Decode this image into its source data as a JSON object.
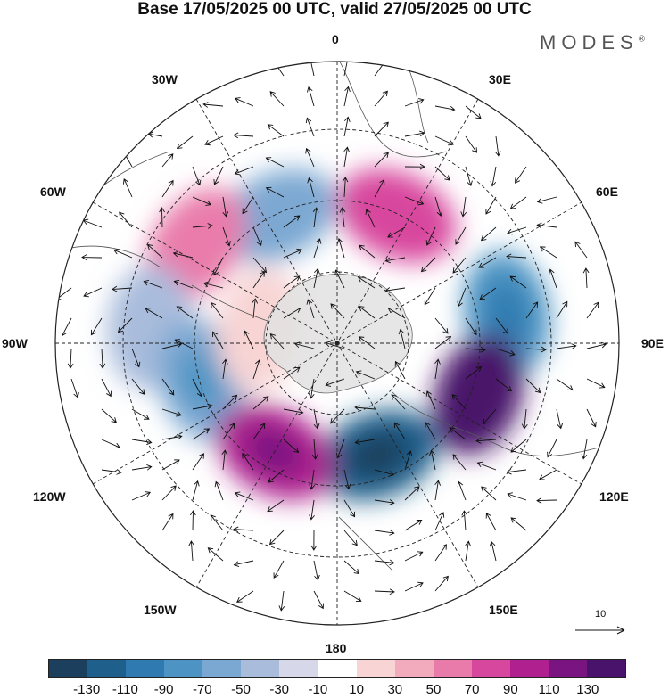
{
  "title": "Base 17/05/2025 00 UTC, valid 27/05/2025 00 UTC",
  "brand": "MODES",
  "brand_mark": "®",
  "labels": {
    "top": "0",
    "top_left": "30W",
    "top_right": "30E",
    "left_upper": "60W",
    "right_upper": "60E",
    "left": "90W",
    "right": "90E",
    "left_lower": "120W",
    "right_lower": "120E",
    "bottom_left": "150W",
    "bottom_right": "150E",
    "bottom": "180"
  },
  "reference_vector": "10",
  "colorbar": {
    "ticks": [
      "-130",
      "-110",
      "-90",
      "-70",
      "-50",
      "-30",
      "-10",
      "10",
      "30",
      "50",
      "70",
      "90",
      "110",
      "130"
    ],
    "colors": [
      "#1b3f5c",
      "#1f5f8c",
      "#2f7bb1",
      "#4d94c4",
      "#7ba8d2",
      "#a9bcdc",
      "#d6d8ea",
      "#ffffff",
      "#f8d4d4",
      "#f2abbd",
      "#e97bab",
      "#d8479e",
      "#b0208f",
      "#7a1481",
      "#4a136b"
    ]
  },
  "anomaly_cells": [
    {
      "lon": -25,
      "colat": 45,
      "value": -60
    },
    {
      "lon": 25,
      "colat": 45,
      "value": 70
    },
    {
      "lon": -55,
      "colat": 55,
      "value": 50
    },
    {
      "lon": 80,
      "colat": 55,
      "value": -90
    },
    {
      "lon": -85,
      "colat": 60,
      "value": -40
    },
    {
      "lon": 110,
      "colat": 48,
      "value": 130
    },
    {
      "lon": -105,
      "colat": 45,
      "value": -70
    },
    {
      "lon": 160,
      "colat": 38,
      "value": -130
    },
    {
      "lon": -150,
      "colat": 40,
      "value": 100
    },
    {
      "lon": -80,
      "colat": 25,
      "value": 20
    }
  ]
}
